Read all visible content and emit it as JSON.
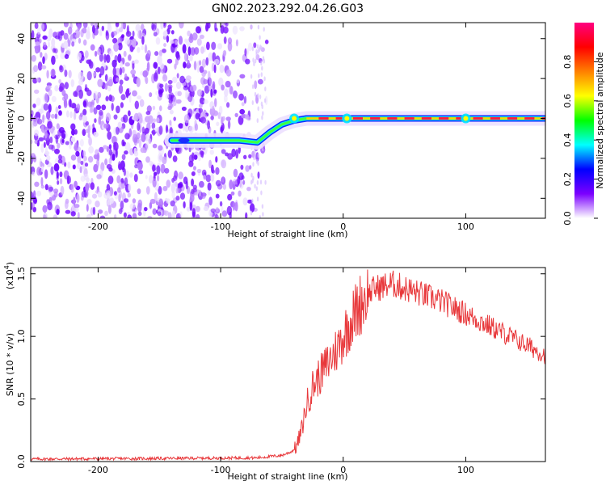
{
  "title": "GN02.2023.292.04.26.G03",
  "chart_data": [
    {
      "type": "heatmap",
      "xlabel": "Height of straight line (km)",
      "ylabel": "Frequency (Hz)",
      "xlim": [
        -255,
        165
      ],
      "ylim": [
        -50,
        48
      ],
      "xticks": [
        -200,
        -100,
        0,
        100
      ],
      "yticks": [
        40,
        20,
        0,
        -20,
        -40
      ],
      "ridge_track": [
        {
          "x": -140,
          "y": -11
        },
        {
          "x": -120,
          "y": -11
        },
        {
          "x": -100,
          "y": -11
        },
        {
          "x": -85,
          "y": -11
        },
        {
          "x": -70,
          "y": -12
        },
        {
          "x": -60,
          "y": -7
        },
        {
          "x": -50,
          "y": -3
        },
        {
          "x": -40,
          "y": -1
        },
        {
          "x": -30,
          "y": 0
        },
        {
          "x": 0,
          "y": 0
        },
        {
          "x": 50,
          "y": 0
        },
        {
          "x": 100,
          "y": 0
        },
        {
          "x": 165,
          "y": 0
        }
      ],
      "colorbar": {
        "label": "Normalized spectral amplitude",
        "range": [
          0,
          1
        ],
        "ticks": [
          "0.0",
          "0.2",
          "0.4",
          "0.6",
          "0.8"
        ],
        "colors": [
          "#ffffff",
          "#7b00ff",
          "#0000ff",
          "#00ffff",
          "#00ff00",
          "#ffff00",
          "#ff8000",
          "#ff0000",
          "#ff0080"
        ]
      },
      "grid": false
    },
    {
      "type": "line",
      "xlabel": "Height of straight line (km)",
      "ylabel": "SNR (10 * v/v)",
      "multiplier": "(x10",
      "multiplier_exp": "4",
      "multiplier_close": ")",
      "xlim": [
        -255,
        165
      ],
      "ylim": [
        0,
        1.55
      ],
      "xticks": [
        -200,
        -100,
        0,
        100
      ],
      "yticks": [
        "0.0",
        "0.5",
        "1.0",
        "1.5"
      ],
      "color": "#e8383b",
      "envelope": [
        {
          "x": -255,
          "y": 0.02
        },
        {
          "x": -150,
          "y": 0.025
        },
        {
          "x": -70,
          "y": 0.03
        },
        {
          "x": -50,
          "y": 0.05
        },
        {
          "x": -42,
          "y": 0.08
        },
        {
          "x": -38,
          "y": 0.12
        },
        {
          "x": -34,
          "y": 0.25
        },
        {
          "x": -30,
          "y": 0.45
        },
        {
          "x": -25,
          "y": 0.6
        },
        {
          "x": -15,
          "y": 0.75
        },
        {
          "x": -5,
          "y": 0.9
        },
        {
          "x": 5,
          "y": 1.1
        },
        {
          "x": 15,
          "y": 1.28
        },
        {
          "x": 25,
          "y": 1.38
        },
        {
          "x": 40,
          "y": 1.42
        },
        {
          "x": 60,
          "y": 1.35
        },
        {
          "x": 80,
          "y": 1.28
        },
        {
          "x": 100,
          "y": 1.18
        },
        {
          "x": 120,
          "y": 1.08
        },
        {
          "x": 140,
          "y": 0.98
        },
        {
          "x": 165,
          "y": 0.85
        }
      ],
      "grid": false
    }
  ]
}
